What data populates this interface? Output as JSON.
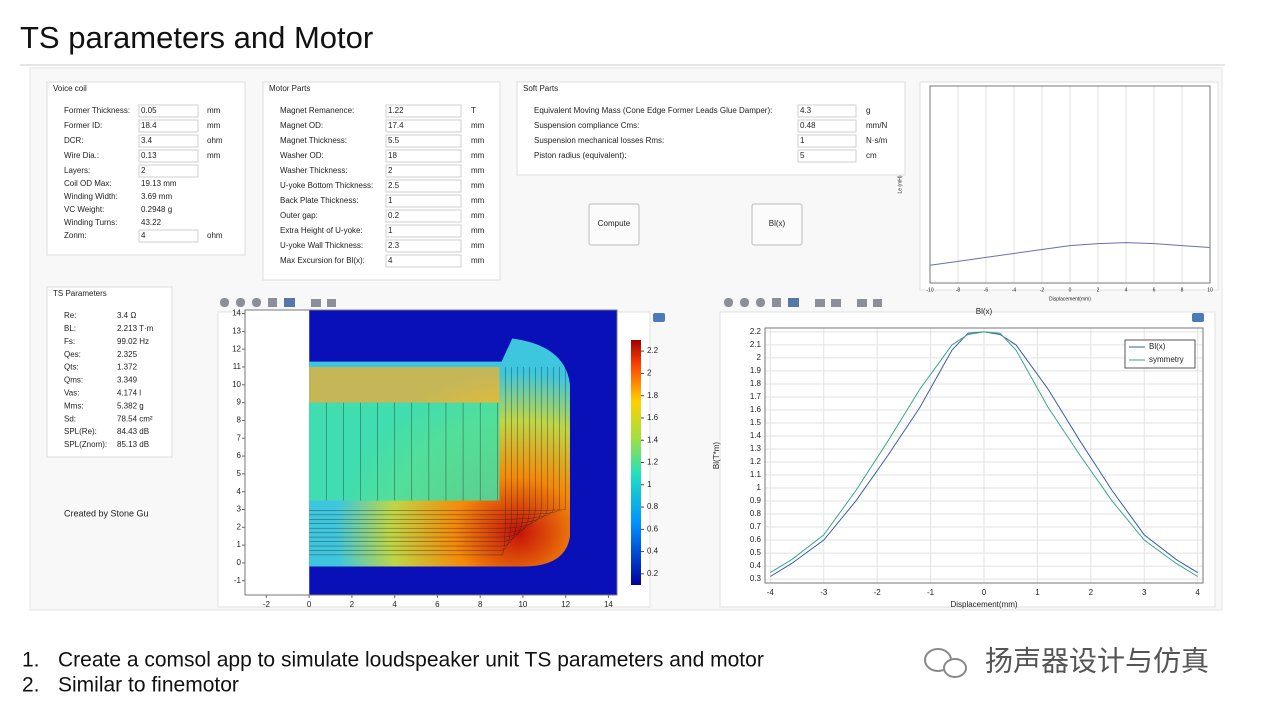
{
  "title": "TS parameters and Motor",
  "voice_coil": {
    "title": "Voice coil",
    "rows": [
      {
        "label": "Former Thickness:",
        "value": "0.05",
        "unit": "mm",
        "input": true
      },
      {
        "label": "Former ID:",
        "value": "18.4",
        "unit": "mm",
        "input": true
      },
      {
        "label": "DCR:",
        "value": "3.4",
        "unit": "ohm",
        "input": true
      },
      {
        "label": "Wire Dia.:",
        "value": "0.13",
        "unit": "mm",
        "input": true
      },
      {
        "label": "Layers:",
        "value": "2",
        "input": true
      },
      {
        "label": "Coil OD Max:",
        "value": "19.13 mm",
        "input": false
      },
      {
        "label": "Winding Width:",
        "value": "3.69 mm",
        "input": false
      },
      {
        "label": "VC Weight:",
        "value": "0.2948 g",
        "input": false
      },
      {
        "label": "Winding Turns:",
        "value": "43.22",
        "input": false
      },
      {
        "label": "Zonm:",
        "value": "4",
        "unit": "ohm",
        "input": true
      }
    ]
  },
  "motor_parts": {
    "title": "Motor Parts",
    "rows": [
      {
        "label": "Magnet Remanence:",
        "value": "1.22",
        "unit": "T",
        "input": true
      },
      {
        "label": "Magnet OD:",
        "value": "17.4",
        "unit": "mm",
        "input": true
      },
      {
        "label": "Magnet Thickness:",
        "value": "5.5",
        "unit": "mm",
        "input": true
      },
      {
        "label": "Washer OD:",
        "value": "18",
        "unit": "mm",
        "input": true
      },
      {
        "label": "Washer Thickness:",
        "value": "2",
        "unit": "mm",
        "input": true
      },
      {
        "label": "U-yoke Bottom Thickness:",
        "value": "2.5",
        "unit": "mm",
        "input": true
      },
      {
        "label": "Back Plate Thickness:",
        "value": "1",
        "unit": "mm",
        "input": true
      },
      {
        "label": "Outer gap:",
        "value": "0.2",
        "unit": "mm",
        "input": true
      },
      {
        "label": "Extra Height of U-yoke:",
        "value": "1",
        "unit": "mm",
        "input": true
      },
      {
        "label": "U-yoke Wall Thickness:",
        "value": "2.3",
        "unit": "mm",
        "input": true
      },
      {
        "label": "Max Excursion for Bl(x):",
        "value": "4",
        "unit": "mm",
        "input": true
      }
    ]
  },
  "soft_parts": {
    "title": "Soft Parts",
    "rows": [
      {
        "label": "Equivalent Moving Mass (Cone Edge Former Leads Glue Damper):",
        "value": "4.3",
        "unit": "g",
        "input": true
      },
      {
        "label": "Suspension compliance Cms:",
        "value": "0.48",
        "unit": "mm/N",
        "input": true
      },
      {
        "label": "Suspension mechanical losses Rms:",
        "value": "1",
        "unit": "N·s/m",
        "input": true
      },
      {
        "label": "Piston radius (equivalent):",
        "value": "5",
        "unit": "cm",
        "input": true
      }
    ]
  },
  "buttons": [
    "Compute",
    "Bl(x)"
  ],
  "ts_parameters": {
    "title": "TS Parameters",
    "rows": [
      {
        "label": "Re:",
        "value": "3.4 Ω"
      },
      {
        "label": "BL:",
        "value": "2.213 T·m"
      },
      {
        "label": "Fs:",
        "value": "99.02 Hz"
      },
      {
        "label": "Qes:",
        "value": "2.325"
      },
      {
        "label": "Qts:",
        "value": "1.372"
      },
      {
        "label": "Qms:",
        "value": "3.349"
      },
      {
        "label": "Vas:",
        "value": "4.174 l"
      },
      {
        "label": "Mms:",
        "value": "5.382 g"
      },
      {
        "label": "Sd:",
        "value": "78.54 cm²"
      },
      {
        "label": "SPL(Re):",
        "value": "84.43 dB"
      },
      {
        "label": "SPL(Znom):",
        "value": "85.13 dB"
      }
    ]
  },
  "credit": "Created by Stone Gu",
  "chart_data": [
    {
      "type": "line",
      "x_label": "Displacement(mm)",
      "y_label": "Le (mH)",
      "x": [
        -10,
        -8,
        -6,
        -4,
        -2,
        0,
        2,
        4,
        6,
        8,
        10
      ],
      "series": [
        {
          "name": "Le",
          "color": "#6a6fb0",
          "values": [
            0.09,
            0.11,
            0.13,
            0.15,
            0.17,
            0.19,
            0.2,
            0.205,
            0.2,
            0.19,
            0.18
          ]
        }
      ],
      "xlim": [
        -10,
        10
      ],
      "ylim": [
        0,
        1
      ],
      "xticks": [
        -10,
        -8,
        -6,
        -4,
        -2,
        0,
        2,
        4,
        6,
        8,
        10
      ],
      "grid": true,
      "legend": false
    },
    {
      "type": "field",
      "xlim": [
        -3,
        14.4
      ],
      "ylim": [
        -1.8,
        14.2
      ],
      "xticks": [
        -2,
        0,
        2,
        4,
        6,
        8,
        10,
        12,
        14
      ],
      "yticks": [
        -1,
        0,
        1,
        2,
        3,
        4,
        5,
        6,
        7,
        8,
        9,
        10,
        11,
        12,
        13,
        14
      ],
      "clim": [
        0.1,
        2.3
      ],
      "cticks": [
        0.2,
        0.4,
        0.6,
        0.8,
        1,
        1.2,
        1.4,
        1.6,
        1.8,
        2,
        2.2
      ]
    },
    {
      "type": "line",
      "title": "Bl(x)",
      "x_label": "Displacement(mm)",
      "y_label": "Bl(T*m)",
      "x": [
        -4,
        -3.6,
        -3,
        -2.4,
        -1.8,
        -1.2,
        -0.6,
        -0.3,
        0,
        0.3,
        0.6,
        1.2,
        1.8,
        2.4,
        3,
        3.6,
        4
      ],
      "series": [
        {
          "name": "Bl(x)",
          "color": "#3b5ea8",
          "values": [
            0.32,
            0.42,
            0.6,
            0.9,
            1.25,
            1.62,
            2.06,
            2.19,
            2.2,
            2.18,
            2.1,
            1.76,
            1.36,
            0.98,
            0.64,
            0.45,
            0.35
          ]
        },
        {
          "name": "symmetry",
          "color": "#3aa68a",
          "values": [
            0.35,
            0.45,
            0.64,
            0.98,
            1.36,
            1.76,
            2.1,
            2.18,
            2.2,
            2.19,
            2.06,
            1.62,
            1.25,
            0.9,
            0.6,
            0.42,
            0.32
          ]
        }
      ],
      "xlim": [
        -4.1,
        4.1
      ],
      "ylim": [
        0.27,
        2.23
      ],
      "xticks": [
        -4,
        -3,
        -2,
        -1,
        0,
        1,
        2,
        3,
        4
      ],
      "yticks": [
        0.3,
        0.4,
        0.5,
        0.6,
        0.7,
        0.8,
        0.9,
        1,
        1.1,
        1.2,
        1.3,
        1.4,
        1.5,
        1.6,
        1.7,
        1.8,
        1.9,
        2,
        2.1,
        2.2
      ],
      "grid": true,
      "legend": "upper right"
    }
  ],
  "bullets": [
    {
      "number": "1.",
      "text": "Create a comsol app to simulate loudspeaker unit TS parameters and motor"
    },
    {
      "number": "2.",
      "text": "Similar to finemotor"
    }
  ],
  "watermark": "扬声器设计与仿真"
}
